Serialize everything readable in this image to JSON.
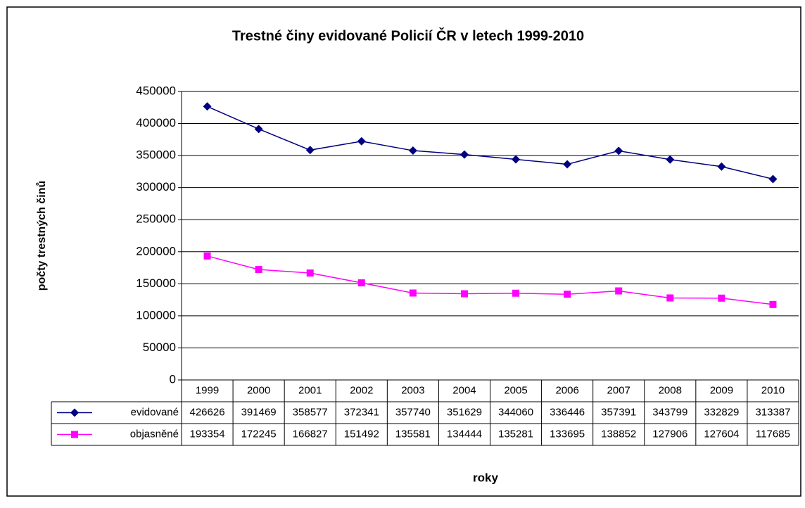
{
  "chart_data": {
    "type": "line",
    "title": "Trestné činy evidované Policií ČR v letech 1999-2010",
    "x_label": "roky",
    "y_label": "počty trestných činů",
    "categories": [
      "1999",
      "2000",
      "2001",
      "2002",
      "2003",
      "2004",
      "2005",
      "2006",
      "2007",
      "2008",
      "2009",
      "2010"
    ],
    "series": [
      {
        "name": "evidované",
        "color": "#000080",
        "marker": "diamond",
        "values": [
          426626,
          391469,
          358577,
          372341,
          357740,
          351629,
          344060,
          336446,
          357391,
          343799,
          332829,
          313387
        ]
      },
      {
        "name": "objasněné",
        "color": "#ff00ff",
        "marker": "square",
        "values": [
          193354,
          172245,
          166827,
          151492,
          135581,
          134444,
          135281,
          133695,
          138852,
          127906,
          127604,
          117685
        ]
      }
    ],
    "ylim": [
      0,
      450000
    ],
    "yticks": [
      0,
      50000,
      100000,
      150000,
      200000,
      250000,
      300000,
      350000,
      400000,
      450000
    ],
    "grid": true,
    "data_table": true
  }
}
